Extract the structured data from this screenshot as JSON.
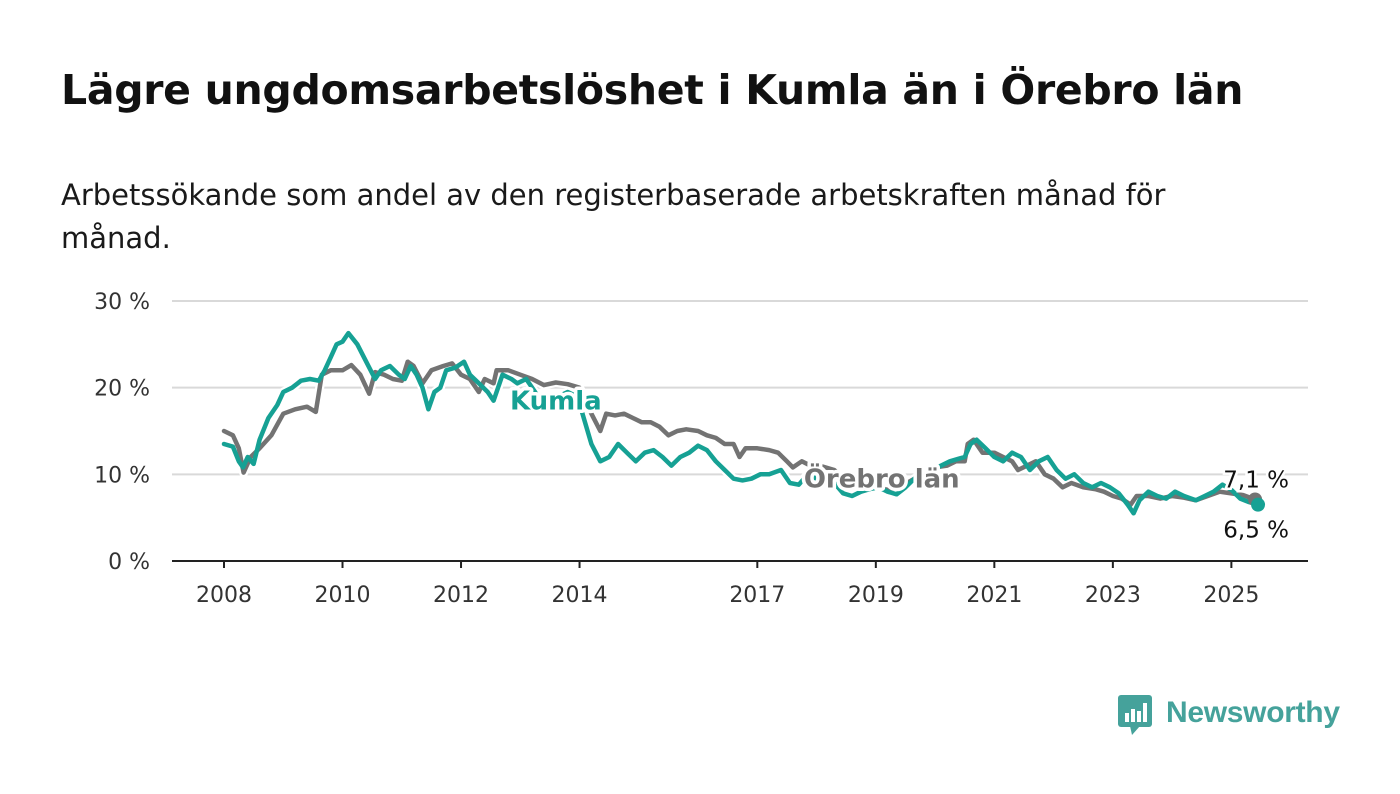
{
  "title": "Lägre ungdomsarbetslöshet i Kumla än i Örebro län",
  "subtitle": "Arbetssökande som andel av den registerbaserade arbetskraften månad för månad.",
  "brand": {
    "name": "Newsworthy",
    "color": "#45a29b",
    "icon": "bar-chart-speech-bubble-icon"
  },
  "chart_data": {
    "type": "line",
    "y_ticks": [
      "0 %",
      "10 %",
      "20 %",
      "30 %"
    ],
    "y_tick_values": [
      0,
      10,
      20,
      30
    ],
    "ylim": [
      0,
      30
    ],
    "x_ticks": [
      "2008",
      "2010",
      "2012",
      "2014",
      "2017",
      "2019",
      "2021",
      "2023",
      "2025"
    ],
    "x_tick_values": [
      2008,
      2010,
      2012,
      2014,
      2017,
      2019,
      2021,
      2023,
      2025
    ],
    "xlim": [
      2008,
      2025.5
    ],
    "grid": true,
    "series": [
      {
        "name": "Örebro län",
        "color": "#737373",
        "end_label": "7,1 %",
        "points": [
          [
            2008.0,
            15.0
          ],
          [
            2008.15,
            14.5
          ],
          [
            2008.25,
            13.0
          ],
          [
            2008.33,
            10.2
          ],
          [
            2008.45,
            12.0
          ],
          [
            2008.6,
            13.0
          ],
          [
            2008.8,
            14.5
          ],
          [
            2009.0,
            17.0
          ],
          [
            2009.2,
            17.5
          ],
          [
            2009.4,
            17.8
          ],
          [
            2009.55,
            17.2
          ],
          [
            2009.65,
            21.5
          ],
          [
            2009.8,
            22.0
          ],
          [
            2010.0,
            22.0
          ],
          [
            2010.15,
            22.6
          ],
          [
            2010.3,
            21.5
          ],
          [
            2010.45,
            19.3
          ],
          [
            2010.55,
            21.8
          ],
          [
            2010.7,
            21.5
          ],
          [
            2010.85,
            21.0
          ],
          [
            2011.0,
            20.8
          ],
          [
            2011.1,
            23.0
          ],
          [
            2011.2,
            22.5
          ],
          [
            2011.35,
            20.5
          ],
          [
            2011.5,
            22.0
          ],
          [
            2011.7,
            22.5
          ],
          [
            2011.85,
            22.8
          ],
          [
            2012.0,
            21.5
          ],
          [
            2012.15,
            21.0
          ],
          [
            2012.3,
            19.5
          ],
          [
            2012.4,
            21.0
          ],
          [
            2012.55,
            20.5
          ],
          [
            2012.6,
            22.0
          ],
          [
            2012.8,
            22.0
          ],
          [
            2013.0,
            21.5
          ],
          [
            2013.2,
            21.0
          ],
          [
            2013.4,
            20.3
          ],
          [
            2013.6,
            20.6
          ],
          [
            2013.8,
            20.4
          ],
          [
            2014.0,
            20.0
          ],
          [
            2014.2,
            17.0
          ],
          [
            2014.35,
            15.0
          ],
          [
            2014.45,
            17.0
          ],
          [
            2014.6,
            16.8
          ],
          [
            2014.75,
            17.0
          ],
          [
            2014.9,
            16.5
          ],
          [
            2015.05,
            16.0
          ],
          [
            2015.2,
            16.0
          ],
          [
            2015.35,
            15.5
          ],
          [
            2015.5,
            14.5
          ],
          [
            2015.65,
            15.0
          ],
          [
            2015.8,
            15.2
          ],
          [
            2016.0,
            15.0
          ],
          [
            2016.15,
            14.5
          ],
          [
            2016.3,
            14.2
          ],
          [
            2016.45,
            13.5
          ],
          [
            2016.6,
            13.5
          ],
          [
            2016.7,
            12.0
          ],
          [
            2016.8,
            13.0
          ],
          [
            2017.0,
            13.0
          ],
          [
            2017.2,
            12.8
          ],
          [
            2017.35,
            12.5
          ],
          [
            2017.5,
            11.5
          ],
          [
            2017.6,
            10.8
          ],
          [
            2017.75,
            11.5
          ],
          [
            2017.9,
            11.0
          ],
          [
            2018.1,
            10.9
          ],
          [
            2018.3,
            10.5
          ],
          [
            2018.45,
            9.5
          ],
          [
            2018.6,
            9.0
          ],
          [
            2018.8,
            9.0
          ],
          [
            2019.0,
            8.6
          ],
          [
            2019.2,
            8.2
          ],
          [
            2019.4,
            8.5
          ],
          [
            2019.6,
            9.3
          ],
          [
            2019.8,
            10.0
          ],
          [
            2020.0,
            10.8
          ],
          [
            2020.2,
            11.0
          ],
          [
            2020.35,
            11.5
          ],
          [
            2020.5,
            11.5
          ],
          [
            2020.55,
            13.5
          ],
          [
            2020.65,
            14.0
          ],
          [
            2020.8,
            12.5
          ],
          [
            2021.0,
            12.5
          ],
          [
            2021.15,
            12.0
          ],
          [
            2021.3,
            11.5
          ],
          [
            2021.4,
            10.5
          ],
          [
            2021.55,
            11.0
          ],
          [
            2021.7,
            11.5
          ],
          [
            2021.85,
            10.0
          ],
          [
            2022.0,
            9.5
          ],
          [
            2022.15,
            8.5
          ],
          [
            2022.3,
            9.0
          ],
          [
            2022.5,
            8.5
          ],
          [
            2022.7,
            8.3
          ],
          [
            2022.85,
            8.0
          ],
          [
            2023.0,
            7.5
          ],
          [
            2023.15,
            7.2
          ],
          [
            2023.3,
            6.5
          ],
          [
            2023.4,
            7.5
          ],
          [
            2023.6,
            7.5
          ],
          [
            2023.8,
            7.2
          ],
          [
            2024.0,
            7.5
          ],
          [
            2024.2,
            7.3
          ],
          [
            2024.4,
            7.0
          ],
          [
            2024.6,
            7.5
          ],
          [
            2024.8,
            8.0
          ],
          [
            2025.0,
            7.8
          ],
          [
            2025.2,
            7.6
          ],
          [
            2025.4,
            7.1
          ]
        ]
      },
      {
        "name": "Kumla",
        "color": "#16a194",
        "end_label": "6,5 %",
        "points": [
          [
            2008.0,
            13.5
          ],
          [
            2008.15,
            13.2
          ],
          [
            2008.25,
            11.5
          ],
          [
            2008.32,
            10.8
          ],
          [
            2008.4,
            12.0
          ],
          [
            2008.5,
            11.2
          ],
          [
            2008.6,
            14.0
          ],
          [
            2008.75,
            16.5
          ],
          [
            2008.9,
            18.0
          ],
          [
            2009.0,
            19.5
          ],
          [
            2009.15,
            20.0
          ],
          [
            2009.3,
            20.8
          ],
          [
            2009.45,
            21.0
          ],
          [
            2009.6,
            20.8
          ],
          [
            2009.7,
            22.0
          ],
          [
            2009.8,
            23.5
          ],
          [
            2009.9,
            25.0
          ],
          [
            2010.0,
            25.3
          ],
          [
            2010.1,
            26.3
          ],
          [
            2010.25,
            25.0
          ],
          [
            2010.4,
            23.0
          ],
          [
            2010.55,
            21.0
          ],
          [
            2010.65,
            22.0
          ],
          [
            2010.8,
            22.5
          ],
          [
            2010.95,
            21.5
          ],
          [
            2011.05,
            21.0
          ],
          [
            2011.15,
            22.5
          ],
          [
            2011.25,
            21.5
          ],
          [
            2011.35,
            20.0
          ],
          [
            2011.45,
            17.5
          ],
          [
            2011.55,
            19.5
          ],
          [
            2011.65,
            20.0
          ],
          [
            2011.75,
            22.0
          ],
          [
            2011.9,
            22.3
          ],
          [
            2012.05,
            23.0
          ],
          [
            2012.15,
            21.5
          ],
          [
            2012.3,
            20.5
          ],
          [
            2012.45,
            19.5
          ],
          [
            2012.55,
            18.5
          ],
          [
            2012.7,
            21.5
          ],
          [
            2012.85,
            21.0
          ],
          [
            2012.95,
            20.5
          ],
          [
            2013.1,
            21.0
          ],
          [
            2013.25,
            19.5
          ],
          [
            2013.4,
            17.8
          ],
          [
            2013.5,
            18.0
          ],
          [
            2013.65,
            19.0
          ],
          [
            2013.8,
            19.5
          ],
          [
            2013.95,
            19.0
          ],
          [
            2014.05,
            17.0
          ],
          [
            2014.2,
            13.5
          ],
          [
            2014.35,
            11.5
          ],
          [
            2014.5,
            12.0
          ],
          [
            2014.65,
            13.5
          ],
          [
            2014.8,
            12.5
          ],
          [
            2014.95,
            11.5
          ],
          [
            2015.1,
            12.5
          ],
          [
            2015.25,
            12.8
          ],
          [
            2015.4,
            12.0
          ],
          [
            2015.55,
            11.0
          ],
          [
            2015.7,
            12.0
          ],
          [
            2015.85,
            12.5
          ],
          [
            2016.0,
            13.3
          ],
          [
            2016.15,
            12.8
          ],
          [
            2016.3,
            11.5
          ],
          [
            2016.45,
            10.5
          ],
          [
            2016.6,
            9.5
          ],
          [
            2016.75,
            9.3
          ],
          [
            2016.9,
            9.5
          ],
          [
            2017.05,
            10.0
          ],
          [
            2017.2,
            10.0
          ],
          [
            2017.4,
            10.5
          ],
          [
            2017.55,
            9.0
          ],
          [
            2017.7,
            8.8
          ],
          [
            2017.85,
            10.0
          ],
          [
            2018.0,
            9.5
          ],
          [
            2018.15,
            9.2
          ],
          [
            2018.3,
            9.0
          ],
          [
            2018.45,
            7.8
          ],
          [
            2018.6,
            7.5
          ],
          [
            2018.75,
            8.0
          ],
          [
            2018.9,
            8.3
          ],
          [
            2019.05,
            8.5
          ],
          [
            2019.2,
            8.0
          ],
          [
            2019.35,
            7.7
          ],
          [
            2019.5,
            8.5
          ],
          [
            2019.65,
            9.5
          ],
          [
            2019.8,
            10.0
          ],
          [
            2019.95,
            10.5
          ],
          [
            2020.1,
            11.0
          ],
          [
            2020.25,
            11.5
          ],
          [
            2020.4,
            11.8
          ],
          [
            2020.5,
            12.0
          ],
          [
            2020.6,
            13.5
          ],
          [
            2020.7,
            14.0
          ],
          [
            2020.85,
            13.0
          ],
          [
            2021.0,
            12.0
          ],
          [
            2021.15,
            11.5
          ],
          [
            2021.3,
            12.5
          ],
          [
            2021.45,
            12.0
          ],
          [
            2021.6,
            10.5
          ],
          [
            2021.75,
            11.5
          ],
          [
            2021.9,
            12.0
          ],
          [
            2022.05,
            10.5
          ],
          [
            2022.2,
            9.5
          ],
          [
            2022.35,
            10.0
          ],
          [
            2022.5,
            9.0
          ],
          [
            2022.65,
            8.5
          ],
          [
            2022.8,
            9.0
          ],
          [
            2022.95,
            8.5
          ],
          [
            2023.1,
            7.8
          ],
          [
            2023.25,
            6.5
          ],
          [
            2023.35,
            5.5
          ],
          [
            2023.45,
            7.0
          ],
          [
            2023.6,
            8.0
          ],
          [
            2023.75,
            7.5
          ],
          [
            2023.9,
            7.2
          ],
          [
            2024.05,
            8.0
          ],
          [
            2024.2,
            7.5
          ],
          [
            2024.4,
            7.0
          ],
          [
            2024.55,
            7.5
          ],
          [
            2024.7,
            8.0
          ],
          [
            2024.85,
            8.8
          ],
          [
            2025.0,
            8.2
          ],
          [
            2025.15,
            7.2
          ],
          [
            2025.3,
            6.8
          ],
          [
            2025.45,
            6.5
          ]
        ]
      }
    ]
  }
}
